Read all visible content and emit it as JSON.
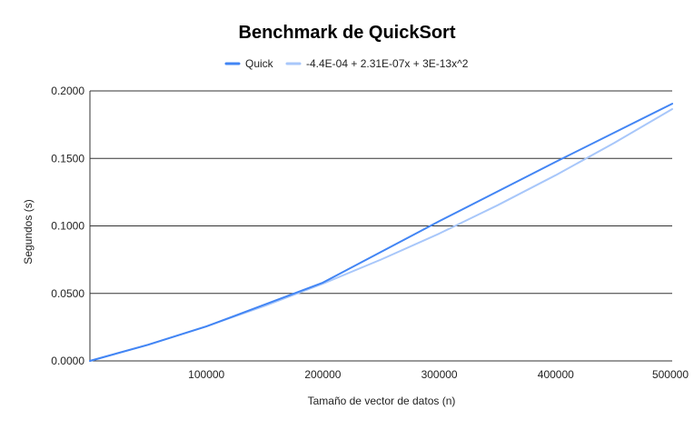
{
  "chart_data": {
    "type": "line",
    "title": "Benchmark de QuickSort",
    "xlabel": "Tamaño de vector de datos (n)",
    "ylabel": "Segundos (s)",
    "xlim": [
      0,
      500000
    ],
    "ylim": [
      0,
      0.2
    ],
    "x_ticks": [
      "100000",
      "200000",
      "300000",
      "400000",
      "500000"
    ],
    "x_tick_values": [
      100000,
      200000,
      300000,
      400000,
      500000
    ],
    "y_ticks": [
      "0.0000",
      "0.0500",
      "0.1000",
      "0.1500",
      "0.2000"
    ],
    "y_tick_values": [
      0,
      0.05,
      0.1,
      0.15,
      0.2
    ],
    "grid": true,
    "legend_position": "top",
    "series": [
      {
        "name": "Quick",
        "color": "#4285f4",
        "x": [
          0,
          50000,
          100000,
          200000,
          300000,
          400000,
          500000
        ],
        "values": [
          0.0,
          0.012,
          0.0255,
          0.058,
          0.1035,
          0.1475,
          0.1905
        ]
      },
      {
        "name": "-4.4E-04 + 2.31E-07x + 3E-13x^2",
        "color": "#a8c7fa",
        "x": [
          0,
          50000,
          100000,
          150000,
          200000,
          250000,
          300000,
          350000,
          400000,
          450000,
          500000
        ],
        "values": [
          -0.00044,
          0.0119,
          0.02566,
          0.04066,
          0.05716,
          0.07506,
          0.09436,
          0.11526,
          0.13756,
          0.16136,
          0.18656
        ]
      }
    ]
  }
}
